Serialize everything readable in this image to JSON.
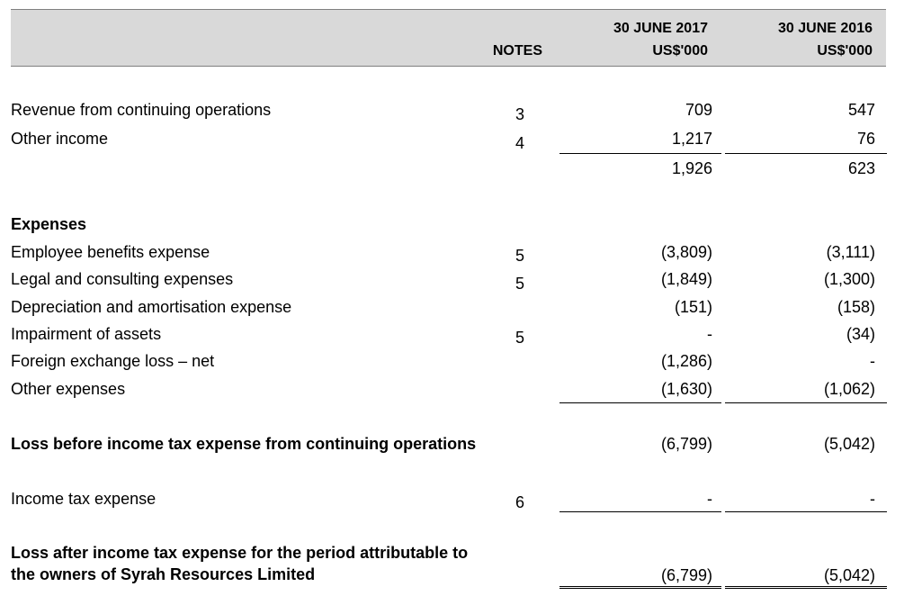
{
  "header": {
    "notes": "NOTES",
    "col1_line1": "30 JUNE 2017",
    "col1_line2": "US$'000",
    "col2_line1": "30 JUNE 2016",
    "col2_line2": "US$'000"
  },
  "rows": {
    "revenue": {
      "label": "Revenue from continuing operations",
      "note": "3",
      "v2017": "709",
      "v2016": "547"
    },
    "other_income": {
      "label": "Other income",
      "note": "4",
      "v2017": "1,217",
      "v2016": "76"
    },
    "subtotal": {
      "v2017": "1,926",
      "v2016": "623"
    },
    "expenses_heading": "Expenses",
    "employee": {
      "label": "Employee benefits expense",
      "note": "5",
      "v2017": "(3,809)",
      "v2016": "(3,111)"
    },
    "legal": {
      "label": "Legal and consulting expenses",
      "note": "5",
      "v2017": "(1,849)",
      "v2016": "(1,300)"
    },
    "depreciation": {
      "label": "Depreciation and amortisation expense",
      "note": "",
      "v2017": "(151)",
      "v2016": "(158)"
    },
    "impairment": {
      "label": "Impairment of assets",
      "note": "5",
      "v2017": "-",
      "v2016": "(34)"
    },
    "fx_loss": {
      "label": "Foreign exchange loss – net",
      "note": "",
      "v2017": "(1,286)",
      "v2016": "-"
    },
    "other_expenses": {
      "label": "Other expenses",
      "note": "",
      "v2017": "(1,630)",
      "v2016": "(1,062)"
    },
    "loss_before": {
      "label": "Loss before income tax expense from continuing operations",
      "v2017": "(6,799)",
      "v2016": "(5,042)"
    },
    "income_tax": {
      "label": "Income tax expense",
      "note": "6",
      "v2017": "-",
      "v2016": "-"
    },
    "loss_after": {
      "label_line1": "Loss after income tax expense for the period attributable to",
      "label_line2": "the owners of Syrah Resources Limited",
      "v2017": "(6,799)",
      "v2016": "(5,042)"
    }
  }
}
